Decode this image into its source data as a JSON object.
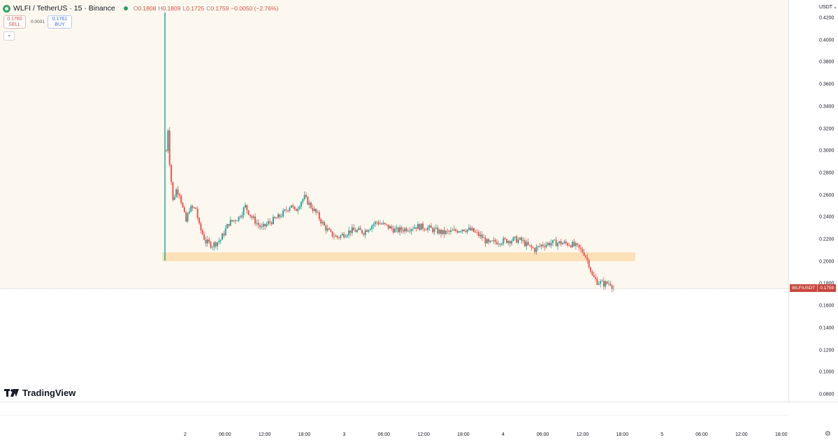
{
  "header": {
    "title": "WLFI / TetherUS · 15 · Binance",
    "ohlc": [
      {
        "k": "O",
        "v": "0.1808"
      },
      {
        "k": "H",
        "v": "0.1809"
      },
      {
        "k": "L",
        "v": "0.1725"
      },
      {
        "k": "C",
        "v": "0.1759"
      },
      {
        "k": "",
        "v": "−0.0050 (−2.76%)"
      }
    ]
  },
  "trade": {
    "sell_price": "0.1760",
    "sell_label": "SELL",
    "spread": "0.0001",
    "buy_price": "0.1761",
    "buy_label": "BUY"
  },
  "price_axis": {
    "unit": "USDT",
    "ticks": [
      "0.4200",
      "0.4000",
      "0.3800",
      "0.3600",
      "0.3400",
      "0.3200",
      "0.3000",
      "0.2800",
      "0.2600",
      "0.2400",
      "0.2200",
      "0.2000",
      "0.1800",
      "0.1600",
      "0.1400",
      "0.1200",
      "0.1000",
      "0.0800"
    ]
  },
  "time_axis": {
    "ticks": [
      "2",
      "06:00",
      "12:00",
      "18:00",
      "3",
      "06:00",
      "12:00",
      "18:00",
      "4",
      "06:00",
      "12:00",
      "18:00",
      "5",
      "06:00",
      "12:00",
      "18:00"
    ]
  },
  "price_tag": {
    "symbol": "WLFIUSDT",
    "value": "0.1759"
  },
  "brand": {
    "name": "TradingView"
  },
  "colors": {
    "up": "#26a69a",
    "down": "#ef5350",
    "zone": "#fbe0b8",
    "background": "#fdf8ef"
  },
  "chart_data": {
    "type": "candlestick",
    "symbol": "WLFI / TetherUS",
    "interval": "15",
    "exchange": "Binance",
    "ylim": [
      0.08,
      0.42
    ],
    "x_range": [
      "2",
      "18:00"
    ],
    "support_zone": [
      0.2005,
      0.2085
    ],
    "last_price": 0.1759,
    "close_path": [
      {
        "t": 0,
        "p": 0.3
      },
      {
        "t": 1,
        "p": 0.32
      },
      {
        "t": 2,
        "p": 0.29
      },
      {
        "t": 4,
        "p": 0.255
      },
      {
        "t": 6,
        "p": 0.265
      },
      {
        "t": 8,
        "p": 0.262
      },
      {
        "t": 10,
        "p": 0.248
      },
      {
        "t": 12,
        "p": 0.236
      },
      {
        "t": 14,
        "p": 0.248
      },
      {
        "t": 18,
        "p": 0.248
      },
      {
        "t": 20,
        "p": 0.232
      },
      {
        "t": 24,
        "p": 0.218
      },
      {
        "t": 28,
        "p": 0.215
      },
      {
        "t": 33,
        "p": 0.22
      },
      {
        "t": 38,
        "p": 0.235
      },
      {
        "t": 44,
        "p": 0.24
      },
      {
        "t": 48,
        "p": 0.25
      },
      {
        "t": 52,
        "p": 0.24
      },
      {
        "t": 58,
        "p": 0.23
      },
      {
        "t": 62,
        "p": 0.235
      },
      {
        "t": 68,
        "p": 0.24
      },
      {
        "t": 72,
        "p": 0.245
      },
      {
        "t": 76,
        "p": 0.252
      },
      {
        "t": 78,
        "p": 0.245
      },
      {
        "t": 82,
        "p": 0.255
      },
      {
        "t": 84,
        "p": 0.258
      },
      {
        "t": 88,
        "p": 0.25
      },
      {
        "t": 92,
        "p": 0.242
      },
      {
        "t": 96,
        "p": 0.232
      },
      {
        "t": 100,
        "p": 0.225
      },
      {
        "t": 104,
        "p": 0.222
      },
      {
        "t": 108,
        "p": 0.225
      },
      {
        "t": 112,
        "p": 0.228
      },
      {
        "t": 116,
        "p": 0.228
      },
      {
        "t": 120,
        "p": 0.227
      },
      {
        "t": 124,
        "p": 0.232
      },
      {
        "t": 128,
        "p": 0.236
      },
      {
        "t": 134,
        "p": 0.232
      },
      {
        "t": 140,
        "p": 0.228
      },
      {
        "t": 146,
        "p": 0.23
      },
      {
        "t": 152,
        "p": 0.232
      },
      {
        "t": 158,
        "p": 0.231
      },
      {
        "t": 162,
        "p": 0.229
      },
      {
        "t": 168,
        "p": 0.226
      },
      {
        "t": 174,
        "p": 0.227
      },
      {
        "t": 180,
        "p": 0.23
      },
      {
        "t": 186,
        "p": 0.228
      },
      {
        "t": 192,
        "p": 0.222
      },
      {
        "t": 196,
        "p": 0.216
      },
      {
        "t": 200,
        "p": 0.218
      },
      {
        "t": 206,
        "p": 0.219
      },
      {
        "t": 212,
        "p": 0.22
      },
      {
        "t": 216,
        "p": 0.219
      },
      {
        "t": 220,
        "p": 0.214
      },
      {
        "t": 224,
        "p": 0.211
      },
      {
        "t": 228,
        "p": 0.215
      },
      {
        "t": 234,
        "p": 0.217
      },
      {
        "t": 240,
        "p": 0.217
      },
      {
        "t": 246,
        "p": 0.216
      },
      {
        "t": 250,
        "p": 0.213
      },
      {
        "t": 254,
        "p": 0.208
      },
      {
        "t": 257,
        "p": 0.198
      },
      {
        "t": 259,
        "p": 0.187
      },
      {
        "t": 262,
        "p": 0.182
      },
      {
        "t": 266,
        "p": 0.18
      },
      {
        "t": 270,
        "p": 0.181
      },
      {
        "t": 272,
        "p": 0.176
      }
    ]
  }
}
